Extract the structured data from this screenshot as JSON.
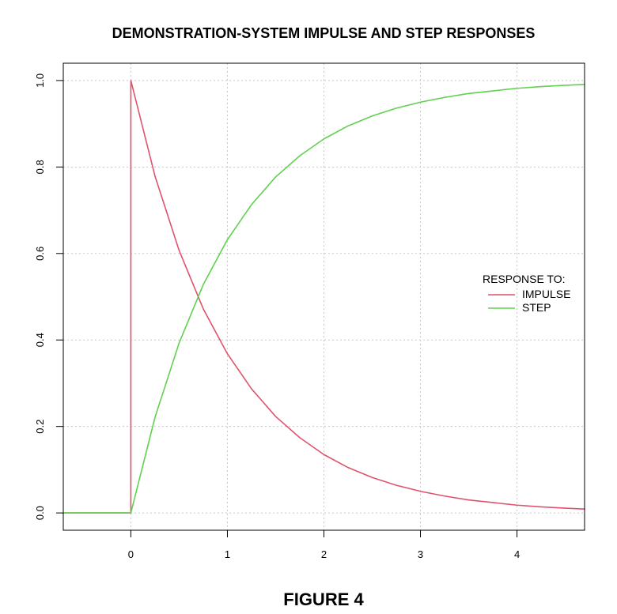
{
  "chart_data": {
    "type": "line",
    "title": "DEMONSTRATION-SYSTEM IMPULSE AND STEP RESPONSES",
    "xlabel": "",
    "ylabel": "",
    "xlim": [
      -0.7,
      4.7
    ],
    "ylim": [
      -0.04,
      1.04
    ],
    "x_ticks": [
      0,
      1,
      2,
      3,
      4
    ],
    "x_tick_labels": [
      "0",
      "1",
      "2",
      "3",
      "4"
    ],
    "y_ticks": [
      0.0,
      0.2,
      0.4,
      0.6,
      0.8,
      1.0
    ],
    "y_tick_labels": [
      "0.0",
      "0.2",
      "0.4",
      "0.6",
      "0.8",
      "1.0"
    ],
    "grid": true,
    "legend": {
      "title": "RESPONSE TO:",
      "placement": "right"
    },
    "series": [
      {
        "name": "IMPULSE",
        "color": "#df536b",
        "points": [
          [
            -0.7,
            0.0
          ],
          [
            0.0,
            0.0
          ],
          [
            0.0,
            1.0
          ],
          [
            0.25,
            0.779
          ],
          [
            0.5,
            0.607
          ],
          [
            0.75,
            0.472
          ],
          [
            1.0,
            0.368
          ],
          [
            1.25,
            0.287
          ],
          [
            1.5,
            0.223
          ],
          [
            1.75,
            0.174
          ],
          [
            2.0,
            0.135
          ],
          [
            2.25,
            0.105
          ],
          [
            2.5,
            0.082
          ],
          [
            2.75,
            0.064
          ],
          [
            3.0,
            0.05
          ],
          [
            3.25,
            0.039
          ],
          [
            3.5,
            0.03
          ],
          [
            3.75,
            0.024
          ],
          [
            4.0,
            0.018
          ],
          [
            4.25,
            0.014
          ],
          [
            4.5,
            0.011
          ],
          [
            4.7,
            0.009
          ]
        ]
      },
      {
        "name": "STEP",
        "color": "#61d04f",
        "points": [
          [
            -0.7,
            0.0
          ],
          [
            0.0,
            0.0
          ],
          [
            0.25,
            0.221
          ],
          [
            0.5,
            0.393
          ],
          [
            0.75,
            0.528
          ],
          [
            1.0,
            0.632
          ],
          [
            1.25,
            0.713
          ],
          [
            1.5,
            0.777
          ],
          [
            1.75,
            0.826
          ],
          [
            2.0,
            0.865
          ],
          [
            2.25,
            0.895
          ],
          [
            2.5,
            0.918
          ],
          [
            2.75,
            0.936
          ],
          [
            3.0,
            0.95
          ],
          [
            3.25,
            0.961
          ],
          [
            3.5,
            0.97
          ],
          [
            3.75,
            0.976
          ],
          [
            4.0,
            0.982
          ],
          [
            4.25,
            0.986
          ],
          [
            4.5,
            0.989
          ],
          [
            4.7,
            0.991
          ]
        ]
      }
    ],
    "caption": "FIGURE 4"
  }
}
